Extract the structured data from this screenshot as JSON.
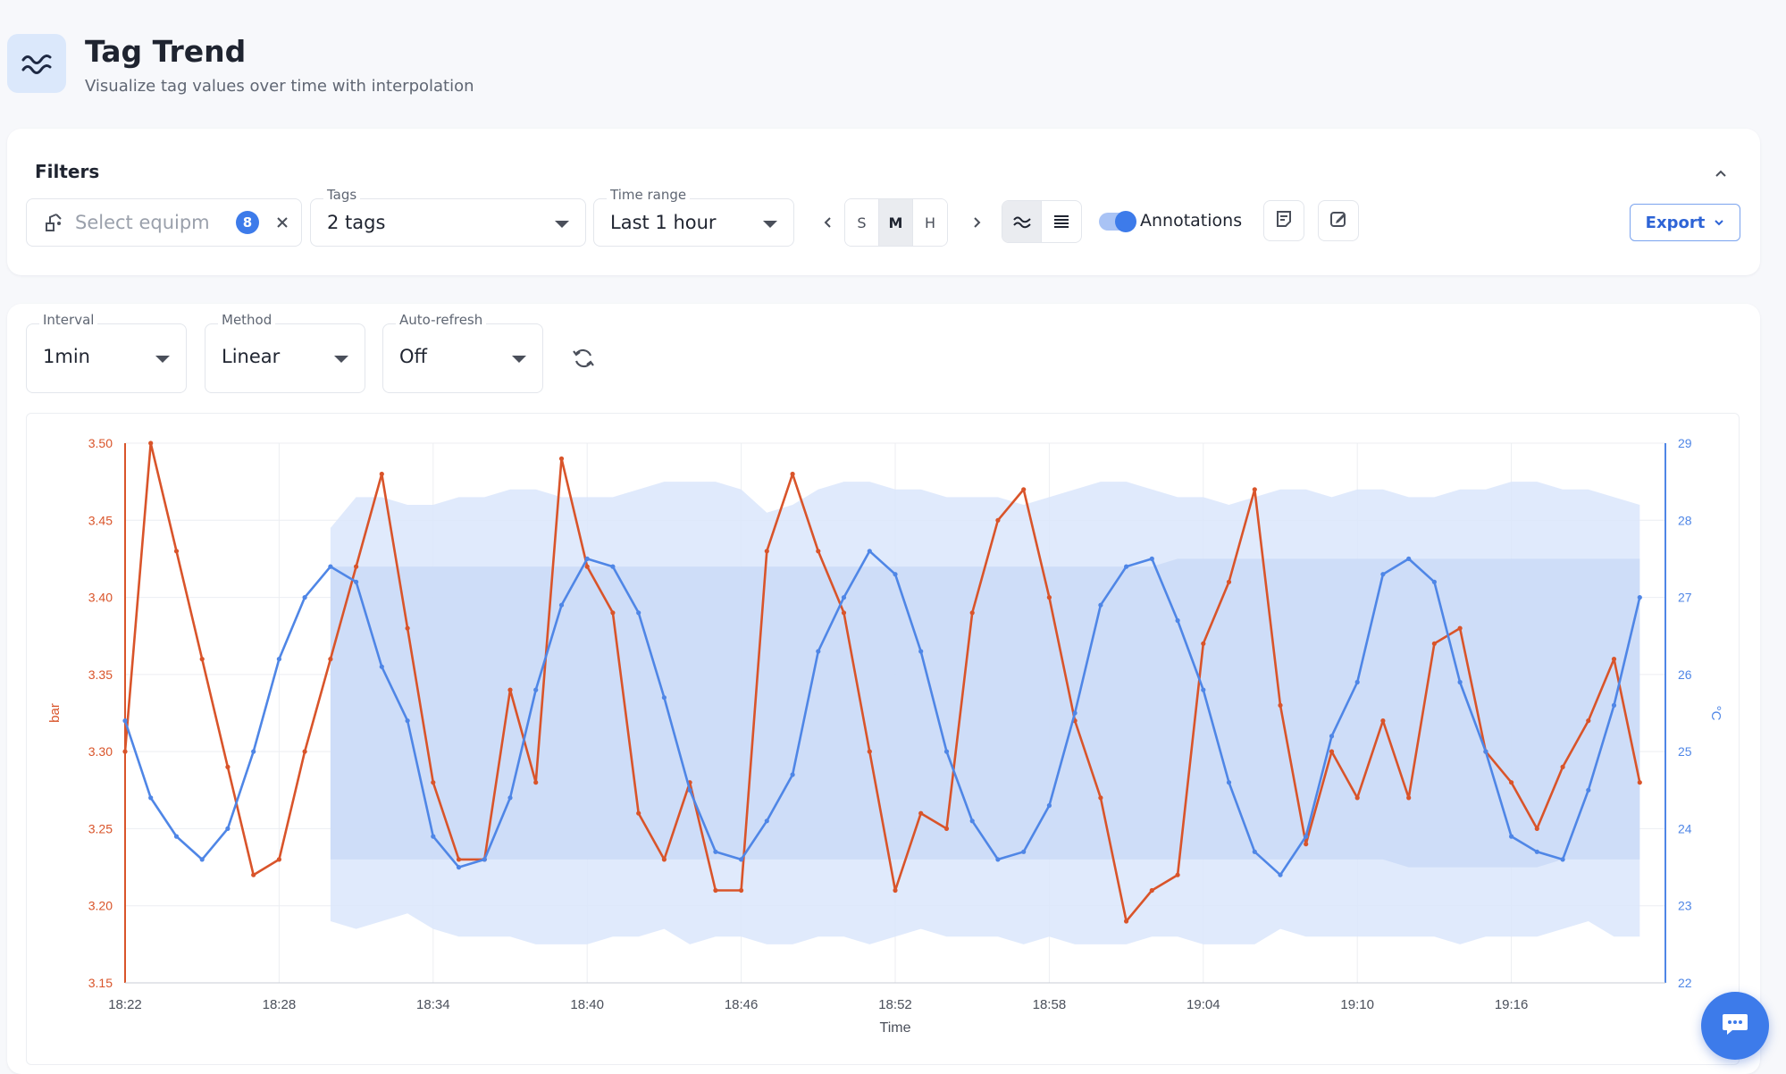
{
  "header": {
    "title": "Tag Trend",
    "subtitle": "Visualize tag values over time with interpolation",
    "icon": "trend-wave-icon"
  },
  "filters": {
    "title": "Filters",
    "equipment": {
      "placeholder": "Select equipm",
      "count": "8"
    },
    "tags": {
      "label": "Tags",
      "value": "2 tags"
    },
    "time_range": {
      "label": "Time range",
      "value": "Last 1 hour"
    },
    "granularity": [
      "S",
      "M",
      "H"
    ],
    "granularity_selected": "M",
    "annotations": {
      "label": "Annotations",
      "enabled": true
    },
    "export_label": "Export"
  },
  "controls": {
    "interval": {
      "label": "Interval",
      "value": "1min"
    },
    "method": {
      "label": "Method",
      "value": "Linear"
    },
    "auto_refresh": {
      "label": "Auto-refresh",
      "value": "Off"
    }
  },
  "colors": {
    "pressure": "#d9542a",
    "temperature": "#4f86e6",
    "band_outer": "#dbe6fb",
    "band_inner": "#c9d9f6",
    "accent": "#3d7bea"
  },
  "chart_data": {
    "type": "line",
    "xlabel": "Time",
    "x_ticks": [
      "18:22",
      "18:28",
      "18:34",
      "18:40",
      "18:46",
      "18:52",
      "18:58",
      "19:04",
      "19:10",
      "19:16"
    ],
    "x_range": [
      "18:22",
      "19:22"
    ],
    "y_left": {
      "label": "bar",
      "ticks": [
        "3.50",
        "3.45",
        "3.40",
        "3.35",
        "3.30",
        "3.25",
        "3.20",
        "3.15"
      ],
      "range": [
        3.15,
        3.5
      ]
    },
    "y_right": {
      "label": "°C",
      "ticks": [
        "29",
        "28",
        "27",
        "26",
        "25",
        "24",
        "23",
        "22"
      ],
      "range": [
        22,
        29
      ]
    },
    "grid": true,
    "series": [
      {
        "axis": "left",
        "color": "#d9542a",
        "points": [
          [
            "18:22",
            3.3
          ],
          [
            "18:23",
            3.5
          ],
          [
            "18:24",
            3.43
          ],
          [
            "18:25",
            3.36
          ],
          [
            "18:26",
            3.29
          ],
          [
            "18:27",
            3.22
          ],
          [
            "18:28",
            3.23
          ],
          [
            "18:29",
            3.3
          ],
          [
            "18:30",
            3.36
          ],
          [
            "18:31",
            3.42
          ],
          [
            "18:32",
            3.48
          ],
          [
            "18:33",
            3.38
          ],
          [
            "18:34",
            3.28
          ],
          [
            "18:35",
            3.23
          ],
          [
            "18:36",
            3.23
          ],
          [
            "18:37",
            3.34
          ],
          [
            "18:38",
            3.28
          ],
          [
            "18:39",
            3.49
          ],
          [
            "18:40",
            3.42
          ],
          [
            "18:41",
            3.39
          ],
          [
            "18:42",
            3.26
          ],
          [
            "18:43",
            3.23
          ],
          [
            "18:44",
            3.28
          ],
          [
            "18:45",
            3.21
          ],
          [
            "18:46",
            3.21
          ],
          [
            "18:47",
            3.43
          ],
          [
            "18:48",
            3.48
          ],
          [
            "18:49",
            3.43
          ],
          [
            "18:50",
            3.39
          ],
          [
            "18:51",
            3.3
          ],
          [
            "18:52",
            3.21
          ],
          [
            "18:53",
            3.26
          ],
          [
            "18:54",
            3.25
          ],
          [
            "18:55",
            3.39
          ],
          [
            "18:56",
            3.45
          ],
          [
            "18:57",
            3.47
          ],
          [
            "18:58",
            3.4
          ],
          [
            "18:59",
            3.32
          ],
          [
            "19:00",
            3.27
          ],
          [
            "19:01",
            3.19
          ],
          [
            "19:02",
            3.21
          ],
          [
            "19:03",
            3.22
          ],
          [
            "19:04",
            3.37
          ],
          [
            "19:05",
            3.41
          ],
          [
            "19:06",
            3.47
          ],
          [
            "19:07",
            3.33
          ],
          [
            "19:08",
            3.24
          ],
          [
            "19:09",
            3.3
          ],
          [
            "19:10",
            3.27
          ],
          [
            "19:11",
            3.32
          ],
          [
            "19:12",
            3.27
          ],
          [
            "19:13",
            3.37
          ],
          [
            "19:14",
            3.38
          ],
          [
            "19:15",
            3.3
          ],
          [
            "19:16",
            3.28
          ],
          [
            "19:17",
            3.25
          ],
          [
            "19:18",
            3.29
          ],
          [
            "19:19",
            3.32
          ],
          [
            "19:20",
            3.36
          ],
          [
            "19:21",
            3.28
          ]
        ]
      },
      {
        "axis": "right",
        "color": "#4f86e6",
        "points": [
          [
            "18:22",
            25.4
          ],
          [
            "18:23",
            24.4
          ],
          [
            "18:24",
            23.9
          ],
          [
            "18:25",
            23.6
          ],
          [
            "18:26",
            24.0
          ],
          [
            "18:27",
            25.0
          ],
          [
            "18:28",
            26.2
          ],
          [
            "18:29",
            27.0
          ],
          [
            "18:30",
            27.4
          ],
          [
            "18:31",
            27.2
          ],
          [
            "18:32",
            26.1
          ],
          [
            "18:33",
            25.4
          ],
          [
            "18:34",
            23.9
          ],
          [
            "18:35",
            23.5
          ],
          [
            "18:36",
            23.6
          ],
          [
            "18:37",
            24.4
          ],
          [
            "18:38",
            25.8
          ],
          [
            "18:39",
            26.9
          ],
          [
            "18:40",
            27.5
          ],
          [
            "18:41",
            27.4
          ],
          [
            "18:42",
            26.8
          ],
          [
            "18:43",
            25.7
          ],
          [
            "18:44",
            24.5
          ],
          [
            "18:45",
            23.7
          ],
          [
            "18:46",
            23.6
          ],
          [
            "18:47",
            24.1
          ],
          [
            "18:48",
            24.7
          ],
          [
            "18:49",
            26.3
          ],
          [
            "18:50",
            27.0
          ],
          [
            "18:51",
            27.6
          ],
          [
            "18:52",
            27.3
          ],
          [
            "18:53",
            26.3
          ],
          [
            "18:54",
            25.0
          ],
          [
            "18:55",
            24.1
          ],
          [
            "18:56",
            23.6
          ],
          [
            "18:57",
            23.7
          ],
          [
            "18:58",
            24.3
          ],
          [
            "18:59",
            25.5
          ],
          [
            "19:00",
            26.9
          ],
          [
            "19:01",
            27.4
          ],
          [
            "19:02",
            27.5
          ],
          [
            "19:03",
            26.7
          ],
          [
            "19:04",
            25.8
          ],
          [
            "19:05",
            24.6
          ],
          [
            "19:06",
            23.7
          ],
          [
            "19:07",
            23.4
          ],
          [
            "19:08",
            23.9
          ],
          [
            "19:09",
            25.2
          ],
          [
            "19:10",
            25.9
          ],
          [
            "19:11",
            27.3
          ],
          [
            "19:12",
            27.5
          ],
          [
            "19:13",
            27.2
          ],
          [
            "19:14",
            25.9
          ],
          [
            "19:15",
            25.0
          ],
          [
            "19:16",
            23.9
          ],
          [
            "19:17",
            23.7
          ],
          [
            "19:18",
            23.6
          ],
          [
            "19:19",
            24.5
          ],
          [
            "19:20",
            25.6
          ],
          [
            "19:21",
            27.0
          ]
        ]
      }
    ],
    "bands": {
      "axis": "right",
      "x_range": [
        "18:30",
        "19:21"
      ],
      "outer_upper": [
        27.9,
        28.3,
        28.3,
        28.2,
        28.2,
        28.3,
        28.3,
        28.4,
        28.4,
        28.3,
        28.3,
        28.3,
        28.4,
        28.5,
        28.5,
        28.5,
        28.4,
        28.1,
        28.2,
        28.4,
        28.5,
        28.5,
        28.4,
        28.4,
        28.3,
        28.3,
        28.3,
        28.2,
        28.3,
        28.4,
        28.5,
        28.5,
        28.4,
        28.3,
        28.3,
        28.2,
        28.3,
        28.4,
        28.4,
        28.3,
        28.4,
        28.4,
        28.3,
        28.3,
        28.4,
        28.4,
        28.5,
        28.5,
        28.4,
        28.4,
        28.3,
        28.2
      ],
      "inner_upper": [
        27.4,
        27.4,
        27.4,
        27.4,
        27.4,
        27.4,
        27.4,
        27.4,
        27.4,
        27.4,
        27.4,
        27.4,
        27.4,
        27.4,
        27.4,
        27.4,
        27.4,
        27.4,
        27.4,
        27.4,
        27.4,
        27.4,
        27.4,
        27.4,
        27.4,
        27.4,
        27.4,
        27.4,
        27.4,
        27.4,
        27.4,
        27.4,
        27.4,
        27.5,
        27.5,
        27.5,
        27.5,
        27.5,
        27.5,
        27.5,
        27.5,
        27.5,
        27.5,
        27.5,
        27.5,
        27.5,
        27.5,
        27.5,
        27.5,
        27.5,
        27.5,
        27.5
      ],
      "inner_lower": [
        23.6,
        23.6,
        23.6,
        23.6,
        23.6,
        23.6,
        23.6,
        23.6,
        23.6,
        23.6,
        23.6,
        23.6,
        23.6,
        23.6,
        23.6,
        23.6,
        23.6,
        23.6,
        23.6,
        23.6,
        23.6,
        23.6,
        23.6,
        23.6,
        23.6,
        23.6,
        23.6,
        23.6,
        23.6,
        23.6,
        23.6,
        23.6,
        23.6,
        23.6,
        23.6,
        23.6,
        23.6,
        23.6,
        23.6,
        23.6,
        23.6,
        23.6,
        23.5,
        23.5,
        23.5,
        23.5,
        23.5,
        23.5,
        23.6,
        23.6,
        23.6,
        23.6
      ],
      "outer_lower": [
        22.8,
        22.7,
        22.8,
        22.9,
        22.7,
        22.6,
        22.6,
        22.6,
        22.5,
        22.5,
        22.5,
        22.6,
        22.6,
        22.7,
        22.5,
        22.6,
        22.6,
        22.5,
        22.5,
        22.6,
        22.6,
        22.5,
        22.6,
        22.7,
        22.6,
        22.6,
        22.6,
        22.5,
        22.6,
        22.5,
        22.5,
        22.5,
        22.6,
        22.6,
        22.5,
        22.5,
        22.5,
        22.7,
        22.6,
        22.6,
        22.6,
        22.6,
        22.6,
        22.6,
        22.5,
        22.6,
        22.6,
        22.6,
        22.7,
        22.8,
        22.6,
        22.6
      ]
    }
  }
}
